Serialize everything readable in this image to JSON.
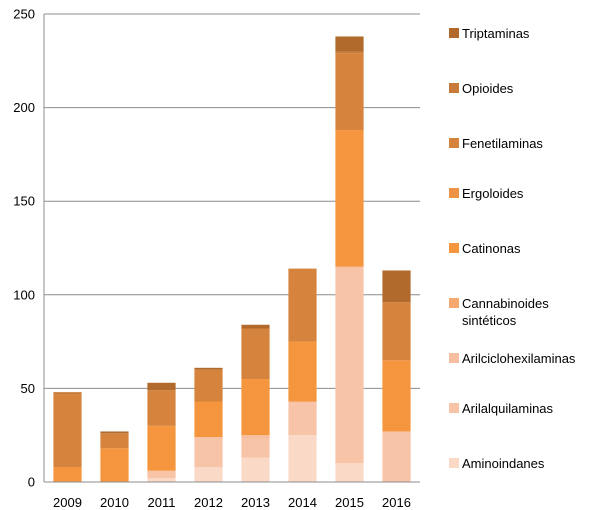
{
  "chart_data": {
    "type": "bar",
    "stacked": true,
    "categories": [
      "2009",
      "2010",
      "2011",
      "2012",
      "2013",
      "2014",
      "2015",
      "2016"
    ],
    "ylim": [
      0,
      250
    ],
    "yticks": [
      "0",
      "50",
      "100",
      "150",
      "200",
      "250"
    ],
    "grid": true,
    "legend_position": "right",
    "series": [
      {
        "name": "Aminoindanes",
        "color": "#fad9c7",
        "values": [
          0,
          0,
          2,
          8,
          13,
          25,
          10,
          0
        ]
      },
      {
        "name": "Arilalquilaminas",
        "color": "#f8c4a8",
        "values": [
          0,
          0,
          4,
          16,
          10,
          17,
          104,
          27
        ]
      },
      {
        "name": "Arilciclohexilaminas",
        "color": "#f8bea0",
        "values": [
          0,
          0,
          0,
          0,
          2,
          1,
          1,
          0
        ]
      },
      {
        "name": "Cannabinoides\nsintéticos",
        "color": "#f6a86f",
        "values": [
          0,
          0,
          0,
          0,
          0,
          0,
          0,
          0
        ]
      },
      {
        "name": "Catinonas",
        "color": "#f5963e",
        "values": [
          8,
          18,
          24,
          19,
          30,
          32,
          73,
          38
        ]
      },
      {
        "name": "Ergoloides",
        "color": "#ee9243",
        "values": [
          0,
          0,
          0,
          0,
          0,
          0,
          0,
          0
        ]
      },
      {
        "name": "Fenetilaminas",
        "color": "#d6843d",
        "values": [
          39,
          8,
          19,
          17,
          27,
          39,
          41,
          31
        ]
      },
      {
        "name": "Opioides",
        "color": "#c87a38",
        "values": [
          1,
          0,
          0,
          0,
          0,
          0,
          1,
          0
        ]
      },
      {
        "name": "Triptaminas",
        "color": "#b16a2c",
        "values": [
          0,
          1,
          4,
          1,
          2,
          0,
          8,
          17
        ]
      }
    ]
  }
}
